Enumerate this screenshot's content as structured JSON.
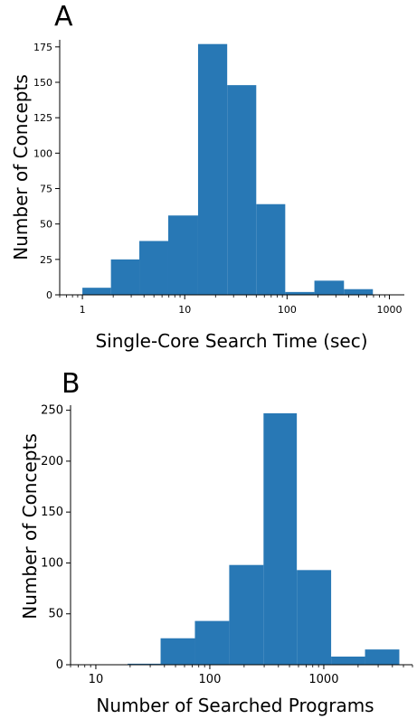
{
  "chart_data": [
    {
      "panel_label": "A",
      "type": "bar",
      "subtype": "histogram",
      "xscale": "log",
      "xlabel": "Single-Core Search Time (sec)",
      "ylabel": "Number of Concepts",
      "xlim": [
        0.6,
        1400
      ],
      "ylim": [
        0,
        180
      ],
      "xticks": [
        1,
        10,
        100,
        1000
      ],
      "xtick_labels": [
        "1",
        "10",
        "100",
        "1000"
      ],
      "yticks": [
        0,
        25,
        50,
        75,
        100,
        125,
        150,
        175
      ],
      "ytick_labels": [
        "0",
        "25",
        "50",
        "75",
        "100",
        "125",
        "150",
        "175"
      ],
      "bins": [
        {
          "x0": 1.0,
          "x1": 1.9,
          "value": 5
        },
        {
          "x0": 1.9,
          "x1": 3.6,
          "value": 25
        },
        {
          "x0": 3.6,
          "x1": 6.9,
          "value": 38
        },
        {
          "x0": 6.9,
          "x1": 13.5,
          "value": 56
        },
        {
          "x0": 13.5,
          "x1": 26,
          "value": 177
        },
        {
          "x0": 26,
          "x1": 50,
          "value": 148
        },
        {
          "x0": 50,
          "x1": 96,
          "value": 64
        },
        {
          "x0": 96,
          "x1": 185,
          "value": 2
        },
        {
          "x0": 185,
          "x1": 360,
          "value": 10
        },
        {
          "x0": 360,
          "x1": 690,
          "value": 4
        }
      ],
      "color": "#2878b5",
      "grid": false,
      "legend": null
    },
    {
      "panel_label": "B",
      "type": "bar",
      "subtype": "histogram",
      "xscale": "log",
      "xlabel": "Number of Searched Programs",
      "ylabel": "Number of Concepts",
      "xlim": [
        6,
        6000
      ],
      "ylim": [
        0,
        255
      ],
      "xticks": [
        10,
        100,
        1000
      ],
      "xtick_labels": [
        "10",
        "100",
        "1000"
      ],
      "yticks": [
        0,
        50,
        100,
        150,
        200,
        250
      ],
      "ytick_labels": [
        "0",
        "50",
        "100",
        "150",
        "200",
        "250"
      ],
      "bins": [
        {
          "x0": 19,
          "x1": 37,
          "value": 1
        },
        {
          "x0": 37,
          "x1": 74,
          "value": 26
        },
        {
          "x0": 74,
          "x1": 148,
          "value": 43
        },
        {
          "x0": 148,
          "x1": 296,
          "value": 98
        },
        {
          "x0": 296,
          "x1": 580,
          "value": 247
        },
        {
          "x0": 580,
          "x1": 1160,
          "value": 93
        },
        {
          "x0": 1160,
          "x1": 2300,
          "value": 8
        },
        {
          "x0": 2300,
          "x1": 4600,
          "value": 15
        }
      ],
      "color": "#2878b5",
      "grid": false,
      "legend": null
    }
  ]
}
